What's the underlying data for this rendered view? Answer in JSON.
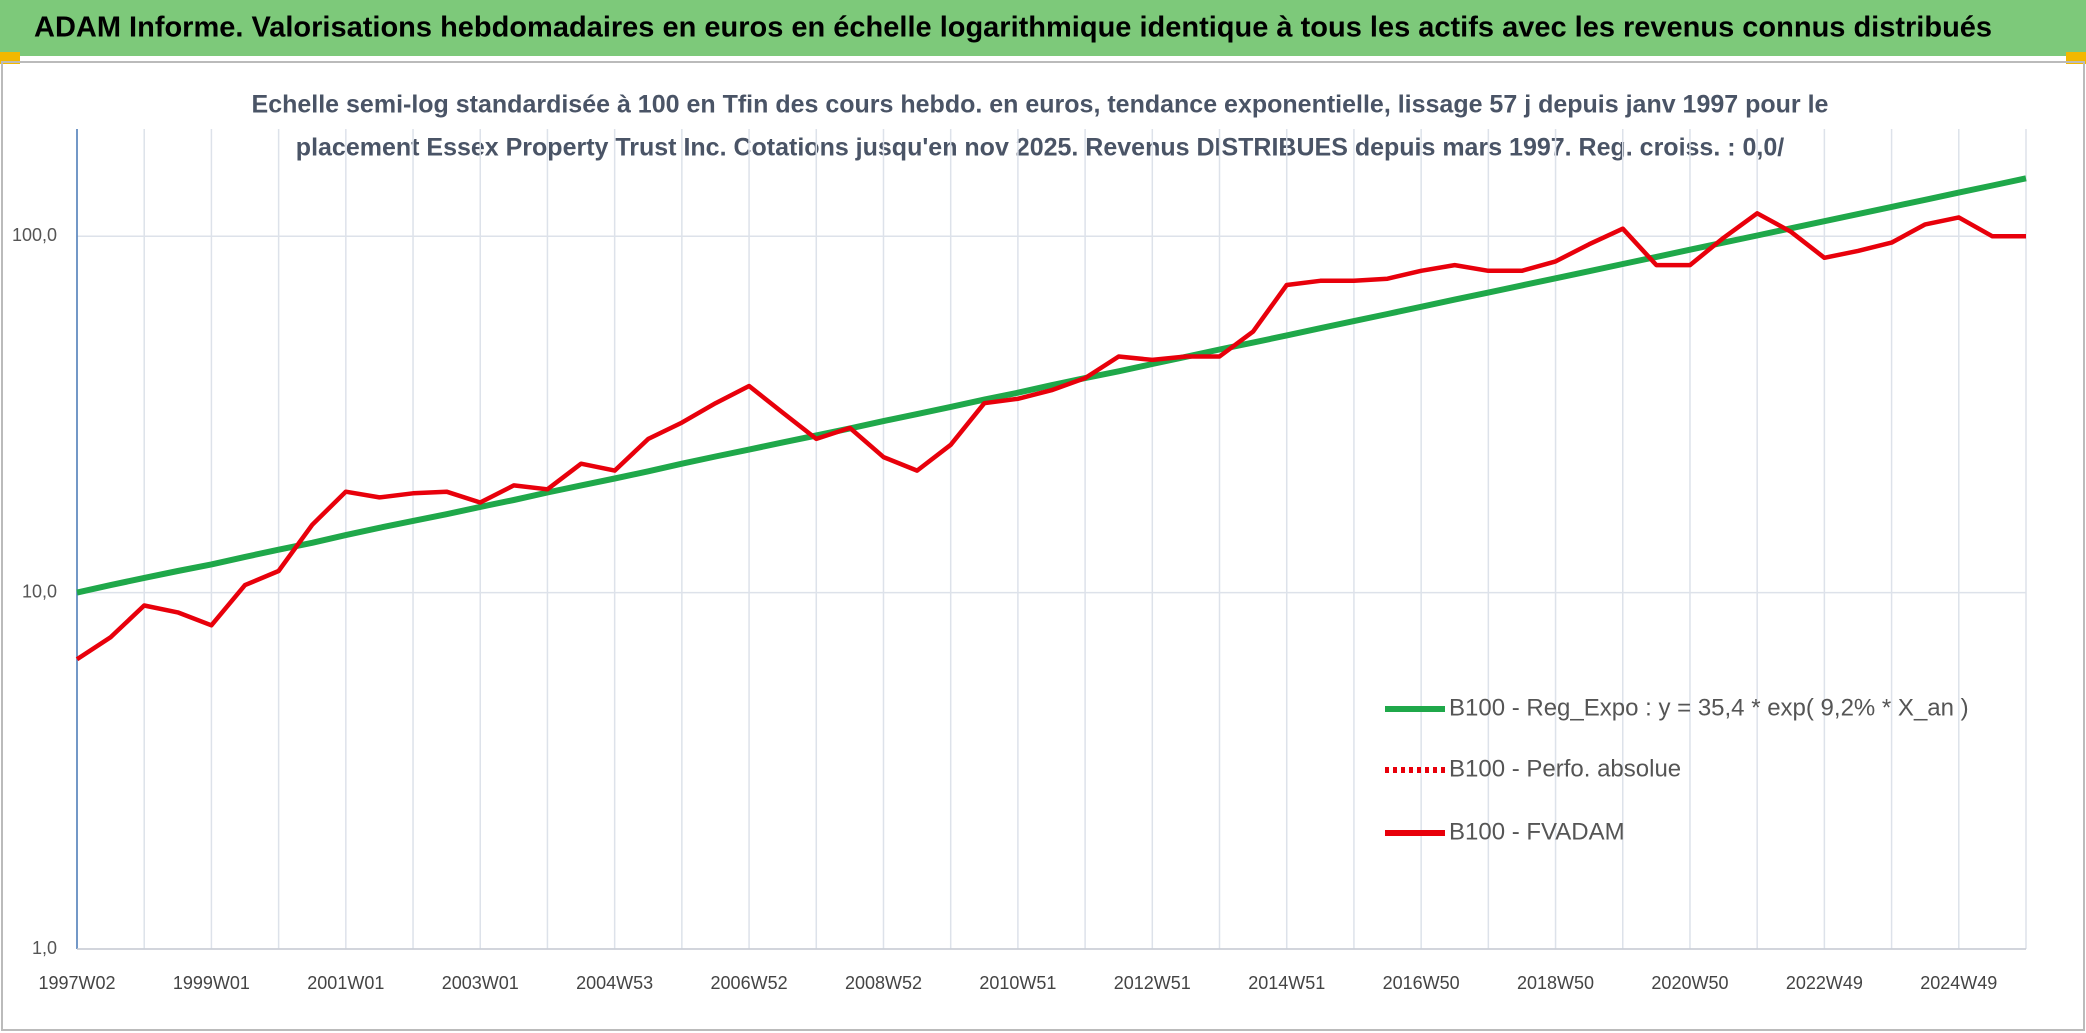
{
  "header": {
    "title": "ADAM Informe. Valorisations hebdomadaires en euros en échelle logarithmique identique à tous les actifs avec les revenus connus distribués"
  },
  "chart_data": {
    "type": "line",
    "title": [
      "Echelle semi-log standardisée à 100 en Tfin des cours hebdo. en euros, tendance exponentielle, lissage 57 j depuis janv 1997 pour le",
      "placement Essex Property  Trust Inc. Cotations jusqu'en nov 2025. Revenus DISTRIBUES depuis mars 1997. Reg. croiss. : 0,0/"
    ],
    "categories": [
      "1997W02",
      null,
      null,
      null,
      "1999W01",
      null,
      null,
      null,
      "2001W01",
      null,
      null,
      null,
      "2003W01",
      null,
      null,
      null,
      "2004W53",
      null,
      null,
      null,
      "2006W52",
      null,
      null,
      null,
      "2008W52",
      null,
      null,
      null,
      "2010W51",
      null,
      null,
      null,
      "2012W51",
      null,
      null,
      null,
      "2014W51",
      null,
      null,
      null,
      "2016W50",
      null,
      null,
      null,
      "2018W50",
      null,
      null,
      null,
      "2020W50",
      null,
      null,
      null,
      "2022W49",
      null,
      null,
      null,
      "2024W49",
      null,
      null
    ],
    "log_scale": true,
    "ylim": [
      1,
      200
    ],
    "yticks": [
      {
        "value": 1,
        "label": "1,0"
      },
      {
        "value": 10,
        "label": "10,0"
      },
      {
        "value": 100,
        "label": "100,0"
      }
    ],
    "grid": true,
    "legend": "bottom-right",
    "series": [
      {
        "name": "B100 - Reg_Expo : y = 35,4 * exp( 9,2% *  X_an )",
        "color": "#1fa84a",
        "style": "solid",
        "values": [
          10,
          10.5,
          11.0,
          11.5,
          12.0,
          12.6,
          13.2,
          13.8,
          14.5,
          15.2,
          15.9,
          16.6,
          17.4,
          18.2,
          19.1,
          20.0,
          20.9,
          21.9,
          23.0,
          24.1,
          25.2,
          26.4,
          27.6,
          28.9,
          30.3,
          31.7,
          33.2,
          34.8,
          36.4,
          38.2,
          40.0,
          41.8,
          43.8,
          45.9,
          48.1,
          50.3,
          52.7,
          55.2,
          57.8,
          60.5,
          63.4,
          66.4,
          69.5,
          72.8,
          76.2,
          79.8,
          83.6,
          87.5,
          91.7,
          96.0,
          100.5,
          105.3,
          110.2,
          115.4,
          120.9,
          126.6,
          132.6,
          138.8,
          145.4
        ]
      },
      {
        "name": "B100 - Perfo. absolue",
        "color": "#e8000b",
        "style": "dotted",
        "values": [
          null,
          null,
          null,
          null,
          null,
          null,
          null,
          null,
          null,
          null,
          null,
          null,
          null,
          null,
          null,
          null,
          null,
          null,
          null,
          null,
          null,
          null,
          null,
          null,
          null,
          null,
          null,
          null,
          null,
          null,
          null,
          null,
          null,
          null,
          null,
          null,
          null,
          null,
          null,
          null,
          null,
          null,
          null,
          null,
          null,
          null,
          null,
          null,
          null,
          null,
          null,
          null,
          null,
          null,
          null,
          null,
          null,
          null,
          null
        ]
      },
      {
        "name": "B100 - FVADAM",
        "color": "#e8000b",
        "style": "solid",
        "values": [
          6.5,
          7.5,
          9.2,
          8.8,
          8.1,
          10.5,
          11.5,
          15.5,
          19.2,
          18.5,
          19,
          19.2,
          17.9,
          20,
          19.5,
          23,
          22,
          27,
          30,
          34,
          38,
          32,
          27,
          29,
          24,
          22,
          26,
          34,
          35,
          37,
          40,
          46,
          45,
          46,
          46,
          54,
          73,
          75,
          75,
          76,
          80,
          83,
          80,
          80,
          85,
          95,
          105,
          83,
          83,
          99,
          116,
          103,
          87,
          91,
          96,
          108,
          113,
          100,
          100
        ]
      }
    ]
  }
}
